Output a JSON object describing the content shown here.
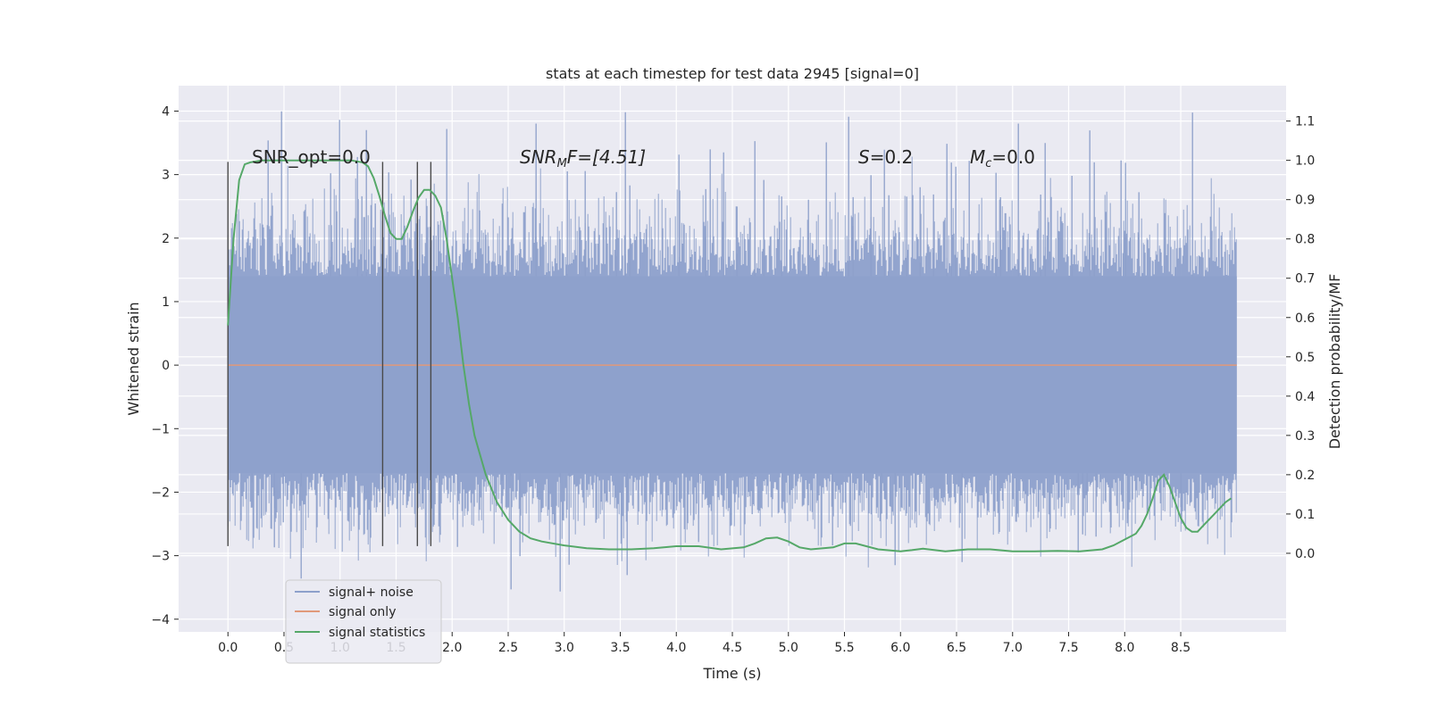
{
  "chart_data": {
    "type": "line",
    "title": "stats at each timestep for test data 2945 [signal=0]",
    "xlabel": "Time (s)",
    "ylabel_left": "Whitened strain",
    "ylabel_right": "Detection probability/MF",
    "xlim": [
      -0.44,
      9.44
    ],
    "ylim_left": [
      -4.2,
      4.4
    ],
    "ylim_right": [
      -0.2,
      1.19
    ],
    "x_ticks": [
      0.0,
      0.5,
      1.0,
      1.5,
      2.0,
      2.5,
      3.0,
      3.5,
      4.0,
      4.5,
      5.0,
      5.5,
      6.0,
      6.5,
      7.0,
      7.5,
      8.0,
      8.5
    ],
    "x_tick_labels": [
      "0.0",
      "0.5",
      "1.0",
      "1.5",
      "2.0",
      "2.5",
      "3.0",
      "3.5",
      "4.0",
      "4.5",
      "5.0",
      "5.5",
      "6.0",
      "6.5",
      "7.0",
      "7.5",
      "8.0",
      "8.5"
    ],
    "y_left_ticks": [
      4,
      3,
      2,
      1,
      0,
      -1,
      -2,
      -3,
      -4
    ],
    "y_left_tick_labels": [
      "4",
      "3",
      "2",
      "1",
      "0",
      "−1",
      "−2",
      "−3",
      "−4"
    ],
    "y_right_ticks": [
      1.1,
      1.0,
      0.9,
      0.8,
      0.7,
      0.6,
      0.5,
      0.4,
      0.3,
      0.2,
      0.1,
      0.0
    ],
    "y_right_tick_labels": [
      "1.1",
      "1.0",
      "0.9",
      "0.8",
      "0.7",
      "0.6",
      "0.5",
      "0.4",
      "0.3",
      "0.2",
      "0.1",
      "0.0"
    ],
    "grid": true,
    "legend_position": "lower-left",
    "annotations": {
      "snr_opt": "SNR_opt=0.0",
      "snr_mf_main": "SNR",
      "snr_mf_sub": "M",
      "snr_mf_rest": "F=[4.51]",
      "s_main": "S",
      "s_rest": "=0.2",
      "mc_main": "M",
      "mc_sub": "c",
      "mc_rest": "=0.0"
    },
    "series": [
      {
        "name": "signal+ noise",
        "color": "#8da0cb",
        "axis": "left",
        "x_range": [
          0.0,
          9.0
        ],
        "approx_envelope": [
          -3.6,
          4.0
        ],
        "approx_dense_band": [
          -1.7,
          1.4
        ]
      },
      {
        "name": "signal only",
        "color": "#e1997a",
        "axis": "left",
        "x": [
          0.0,
          9.0
        ],
        "y": [
          0.0,
          0.0
        ]
      },
      {
        "name": "signal statistics",
        "color": "#55a868",
        "axis": "right",
        "x": [
          0.0,
          0.05,
          0.1,
          0.15,
          0.2,
          0.3,
          0.4,
          0.6,
          0.8,
          1.0,
          1.1,
          1.2,
          1.25,
          1.3,
          1.35,
          1.4,
          1.45,
          1.5,
          1.55,
          1.6,
          1.65,
          1.7,
          1.75,
          1.8,
          1.85,
          1.9,
          1.95,
          2.0,
          2.05,
          2.1,
          2.15,
          2.2,
          2.3,
          2.4,
          2.5,
          2.6,
          2.7,
          2.8,
          3.0,
          3.2,
          3.4,
          3.6,
          3.8,
          4.0,
          4.2,
          4.4,
          4.6,
          4.7,
          4.8,
          4.9,
          5.0,
          5.1,
          5.2,
          5.4,
          5.5,
          5.6,
          5.8,
          6.0,
          6.1,
          6.2,
          6.4,
          6.6,
          6.8,
          7.0,
          7.2,
          7.4,
          7.6,
          7.8,
          7.9,
          8.0,
          8.1,
          8.15,
          8.2,
          8.25,
          8.3,
          8.35,
          8.4,
          8.45,
          8.5,
          8.55,
          8.6,
          8.65,
          8.7,
          8.8,
          8.9,
          8.95
        ],
        "y": [
          0.58,
          0.8,
          0.95,
          0.99,
          0.995,
          1.0,
          1.0,
          1.0,
          1.0,
          1.0,
          1.0,
          0.995,
          0.985,
          0.955,
          0.91,
          0.86,
          0.815,
          0.8,
          0.8,
          0.83,
          0.87,
          0.905,
          0.925,
          0.925,
          0.91,
          0.88,
          0.8,
          0.7,
          0.6,
          0.48,
          0.38,
          0.3,
          0.2,
          0.13,
          0.085,
          0.055,
          0.038,
          0.03,
          0.02,
          0.013,
          0.01,
          0.01,
          0.013,
          0.018,
          0.018,
          0.01,
          0.015,
          0.025,
          0.038,
          0.04,
          0.03,
          0.015,
          0.01,
          0.015,
          0.025,
          0.025,
          0.01,
          0.005,
          0.008,
          0.012,
          0.005,
          0.01,
          0.01,
          0.005,
          0.005,
          0.006,
          0.005,
          0.01,
          0.02,
          0.035,
          0.05,
          0.07,
          0.1,
          0.14,
          0.185,
          0.2,
          0.17,
          0.13,
          0.09,
          0.065,
          0.055,
          0.055,
          0.07,
          0.1,
          0.13,
          0.14
        ]
      }
    ],
    "vlines": {
      "x": [
        0.0,
        1.38,
        1.69,
        1.81
      ],
      "y_range": [
        -2.85,
        3.2
      ],
      "color": "#4a4a4a"
    }
  }
}
